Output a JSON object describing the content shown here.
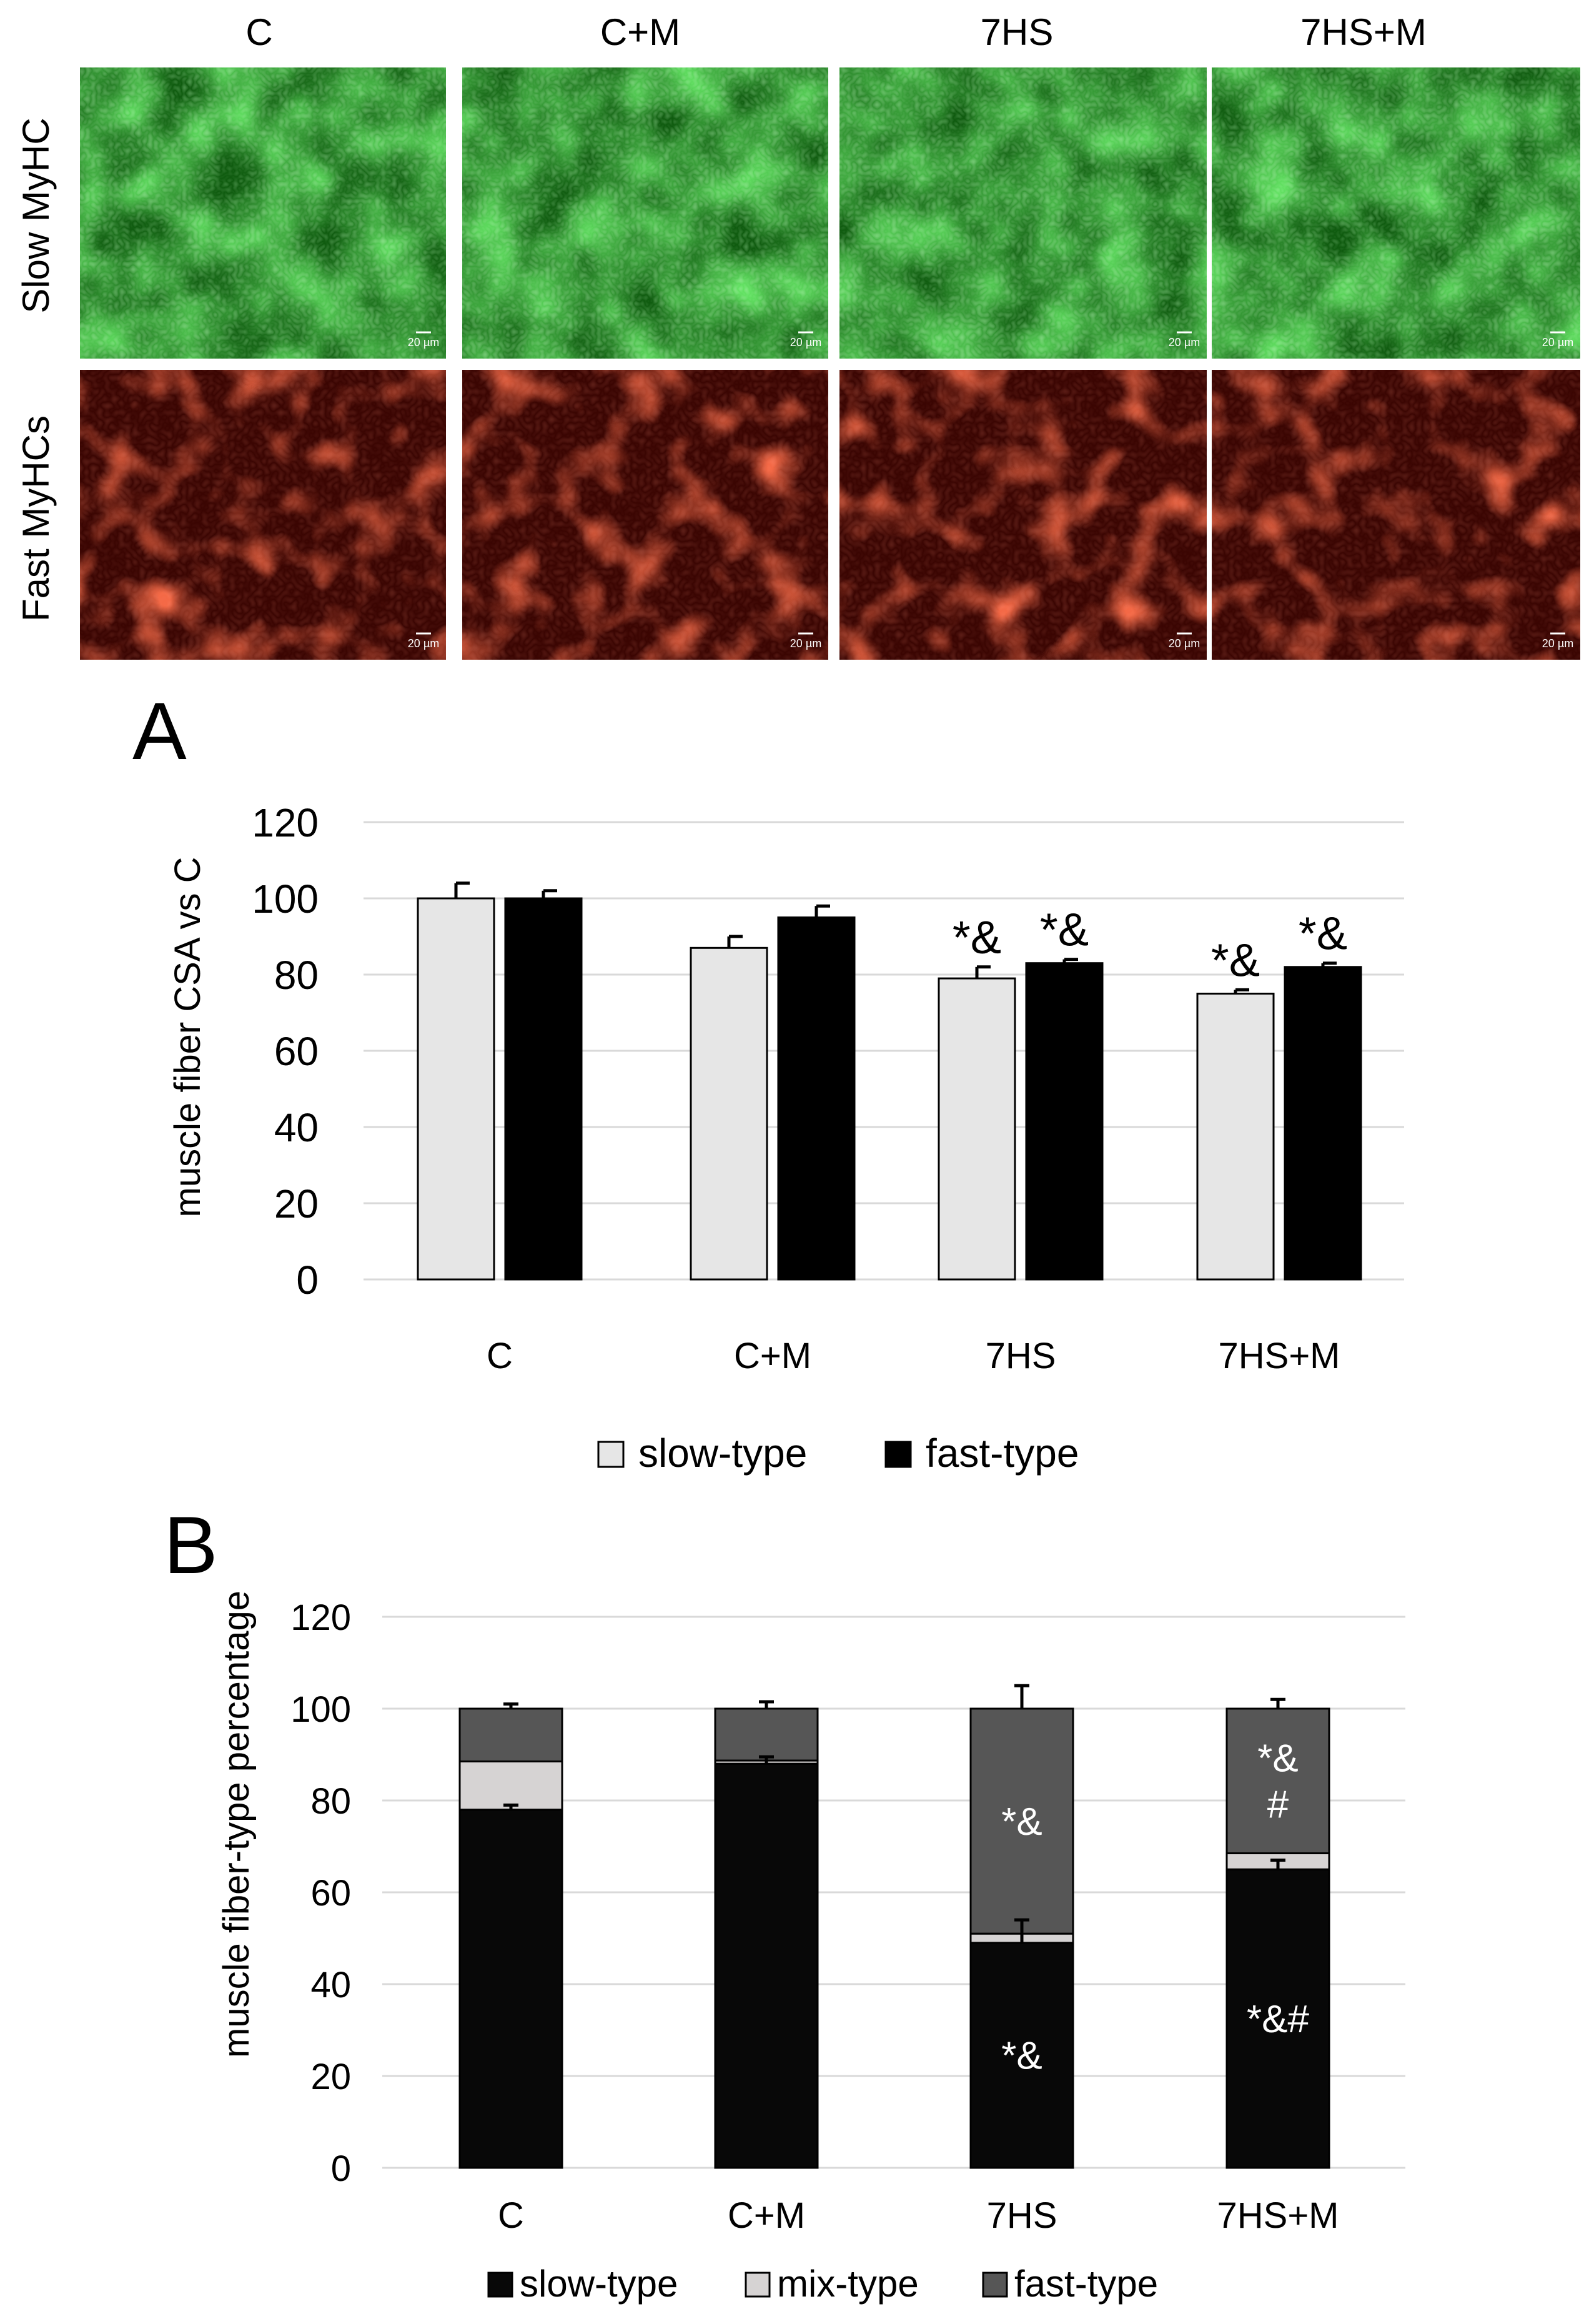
{
  "micrographs": {
    "columns": [
      "C",
      "C+M",
      "7HS",
      "7HS+M"
    ],
    "rows": [
      {
        "label": "Slow MyHC",
        "color": "#1fbf1f"
      },
      {
        "label": "Fast MyHCs",
        "color": "#c81e0c"
      }
    ],
    "scale_bar": "20 µm"
  },
  "chart_data": [
    {
      "type": "bar",
      "panel_label": "A",
      "categories": [
        "C",
        "C+M",
        "7HS",
        "7HS+M"
      ],
      "ylabel": "muscle fiber CSA vs C",
      "xlabel": "",
      "ylim": [
        0,
        120
      ],
      "yticks": [
        0,
        20,
        40,
        60,
        80,
        100,
        120
      ],
      "grid": true,
      "legend": "bottom",
      "series": [
        {
          "name": "slow-type",
          "color": "#e6e6e6",
          "values": [
            100,
            87,
            79,
            75
          ],
          "errors": [
            4,
            3,
            3,
            1
          ]
        },
        {
          "name": "fast-type",
          "color": "#000000",
          "values": [
            100,
            95,
            83,
            82
          ],
          "errors": [
            2,
            3,
            1,
            1
          ]
        }
      ],
      "annotations": [
        {
          "series": 0,
          "category": 2,
          "text": "*&"
        },
        {
          "series": 1,
          "category": 2,
          "text": "*&"
        },
        {
          "series": 0,
          "category": 3,
          "text": "*&"
        },
        {
          "series": 1,
          "category": 3,
          "text": "*&"
        }
      ]
    },
    {
      "type": "stacked-bar",
      "panel_label": "B",
      "categories": [
        "C",
        "C+M",
        "7HS",
        "7HS+M"
      ],
      "ylabel": "muscle fiber-type percentage",
      "xlabel": "",
      "ylim": [
        0,
        120
      ],
      "yticks": [
        0,
        20,
        40,
        60,
        80,
        100,
        120
      ],
      "grid": true,
      "legend": "bottom",
      "series": [
        {
          "name": "slow-type",
          "color": "#080808",
          "values": [
            78,
            88,
            49,
            65
          ],
          "errors": [
            1,
            1.5,
            5,
            2
          ]
        },
        {
          "name": "mix-type",
          "color": "#d6d3d3",
          "values": [
            10.5,
            0.7,
            2,
            3.5
          ],
          "errors": [
            0,
            0,
            0,
            0
          ]
        },
        {
          "name": "fast-type",
          "color": "#565656",
          "values": [
            11.5,
            11.3,
            49,
            31.5
          ],
          "errors": [
            1,
            1.5,
            5,
            2
          ]
        }
      ],
      "annotations": [
        {
          "series": 2,
          "category": 2,
          "text": "*&"
        },
        {
          "series": 0,
          "category": 2,
          "text": "*&"
        },
        {
          "series": 2,
          "category": 3,
          "text": "*&\n#"
        },
        {
          "series": 0,
          "category": 3,
          "text": "*&#"
        }
      ]
    }
  ]
}
